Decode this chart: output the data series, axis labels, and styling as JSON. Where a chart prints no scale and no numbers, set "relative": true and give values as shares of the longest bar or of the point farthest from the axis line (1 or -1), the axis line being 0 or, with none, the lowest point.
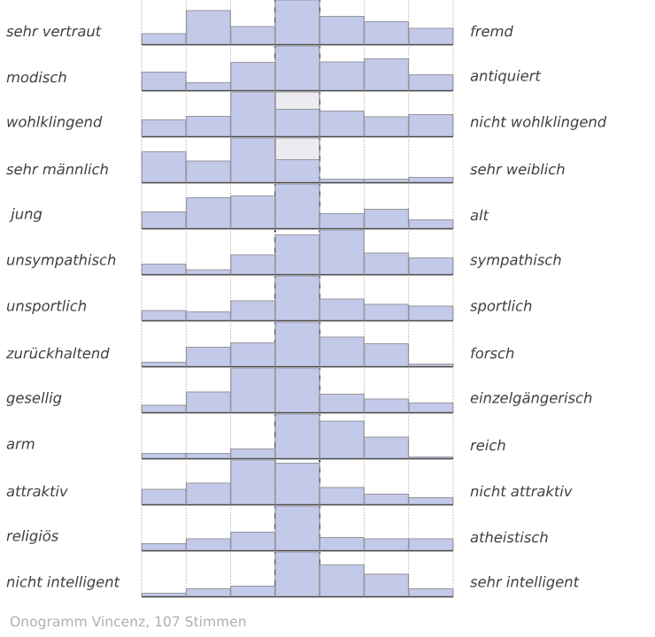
{
  "chart_data": [
    {
      "type": "bar",
      "relative": true,
      "grid": "x",
      "ylabel": "sehr vertraut",
      "y2label": "fremd",
      "categories": [
        null,
        null,
        null,
        null,
        null,
        null,
        null
      ],
      "series": [
        {
          "color": "#c3c9e9",
          "values": [
            0.24,
            0.76,
            0.4,
            1,
            0.63,
            0.51,
            0.36
          ]
        }
      ]
    },
    {
      "type": "bar",
      "relative": true,
      "grid": "x",
      "ylabel": "modisch",
      "y2label": "antiquiert",
      "categories": [
        null,
        null,
        null,
        null,
        null,
        null,
        null
      ],
      "series": [
        {
          "color": "#c3c9e9",
          "values": [
            0.41,
            0.17,
            0.63,
            1,
            0.64,
            0.71,
            0.35
          ]
        }
      ]
    },
    {
      "type": "bar",
      "relative": true,
      "grid": "x",
      "stacked": true,
      "ylabel": "wohlklingend",
      "y2label": "nicht wohlklingend",
      "categories": [
        null,
        null,
        null,
        null,
        null,
        null,
        null
      ],
      "series": [
        {
          "color": "#c3c9e9",
          "values": [
            0.37,
            0.45,
            1,
            0.61,
            0.57,
            0.44,
            0.49
          ]
        },
        {
          "color": "#ececf0",
          "values": [
            null,
            null,
            null,
            0.39,
            null,
            null,
            null
          ]
        }
      ]
    },
    {
      "type": "bar",
      "relative": true,
      "grid": "x",
      "stacked": true,
      "ylabel": "sehr männlich",
      "y2label": "sehr weiblich",
      "categories": [
        null,
        null,
        null,
        null,
        null,
        null,
        null
      ],
      "series": [
        {
          "color": "#c3c9e9",
          "values": [
            0.69,
            0.48,
            1,
            0.51,
            0.07,
            0.07,
            0.11
          ]
        },
        {
          "color": "#ececf0",
          "values": [
            null,
            null,
            null,
            0.49,
            null,
            null,
            null
          ]
        }
      ]
    },
    {
      "type": "bar",
      "relative": true,
      "grid": "x",
      "ylabel": " jung",
      "y2label": "alt",
      "categories": [
        null,
        null,
        null,
        null,
        null,
        null,
        null
      ],
      "series": [
        {
          "color": "#c3c9e9",
          "values": [
            0.37,
            0.69,
            0.73,
            1,
            0.33,
            0.43,
            0.19
          ]
        }
      ]
    },
    {
      "type": "bar",
      "relative": true,
      "grid": "x",
      "ylabel": "unsympathisch",
      "y2label": "sympathisch",
      "categories": [
        null,
        null,
        null,
        null,
        null,
        null,
        null
      ],
      "series": [
        {
          "color": "#c3c9e9",
          "values": [
            0.23,
            0.1,
            0.44,
            0.89,
            1,
            0.48,
            0.37
          ]
        }
      ]
    },
    {
      "type": "bar",
      "relative": true,
      "grid": "x",
      "ylabel": "unsportlich",
      "y2label": "sportlich",
      "categories": [
        null,
        null,
        null,
        null,
        null,
        null,
        null
      ],
      "series": [
        {
          "color": "#c3c9e9",
          "values": [
            0.22,
            0.19,
            0.44,
            1,
            0.48,
            0.36,
            0.32
          ]
        }
      ]
    },
    {
      "type": "bar",
      "relative": true,
      "grid": "x",
      "ylabel": "zurückhaltend",
      "y2label": "forsch",
      "categories": [
        null,
        null,
        null,
        null,
        null,
        null,
        null
      ],
      "series": [
        {
          "color": "#c3c9e9",
          "values": [
            0.09,
            0.43,
            0.53,
            1,
            0.66,
            0.51,
            0.05
          ]
        }
      ]
    },
    {
      "type": "bar",
      "relative": true,
      "grid": "x",
      "ylabel": "gesellig",
      "y2label": "einzelgängerisch",
      "categories": [
        null,
        null,
        null,
        null,
        null,
        null,
        null
      ],
      "series": [
        {
          "color": "#c3c9e9",
          "values": [
            0.16,
            0.46,
            1,
            1,
            0.41,
            0.3,
            0.21
          ]
        }
      ]
    },
    {
      "type": "bar",
      "relative": true,
      "grid": "x",
      "ylabel": "arm",
      "y2label": "reich",
      "categories": [
        null,
        null,
        null,
        null,
        null,
        null,
        null
      ],
      "series": [
        {
          "color": "#c3c9e9",
          "values": [
            0.11,
            0.11,
            0.21,
            1,
            0.84,
            0.48,
            0.03
          ]
        }
      ]
    },
    {
      "type": "bar",
      "relative": true,
      "grid": "x",
      "ylabel": "attraktiv",
      "y2label": "nicht attraktiv",
      "categories": [
        null,
        null,
        null,
        null,
        null,
        null,
        null
      ],
      "series": [
        {
          "color": "#c3c9e9",
          "values": [
            0.34,
            0.48,
            1,
            0.93,
            0.38,
            0.23,
            0.15
          ]
        }
      ]
    },
    {
      "type": "bar",
      "relative": true,
      "grid": "x",
      "ylabel": "religiös",
      "y2label": "atheistisch",
      "categories": [
        null,
        null,
        null,
        null,
        null,
        null,
        null
      ],
      "series": [
        {
          "color": "#c3c9e9",
          "values": [
            0.15,
            0.26,
            0.41,
            1,
            0.29,
            0.26,
            0.26
          ]
        }
      ]
    },
    {
      "type": "bar",
      "relative": true,
      "grid": "x",
      "ylabel": "nicht intelligent",
      "y2label": "sehr intelligent",
      "categories": [
        null,
        null,
        null,
        null,
        null,
        null,
        null
      ],
      "series": [
        {
          "color": "#c3c9e9",
          "values": [
            0.07,
            0.17,
            0.23,
            1,
            0.71,
            0.5,
            0.17
          ]
        }
      ],
      "annotations": [
        "Onogramm Vincenz, 107 Stimmen"
      ]
    }
  ]
}
